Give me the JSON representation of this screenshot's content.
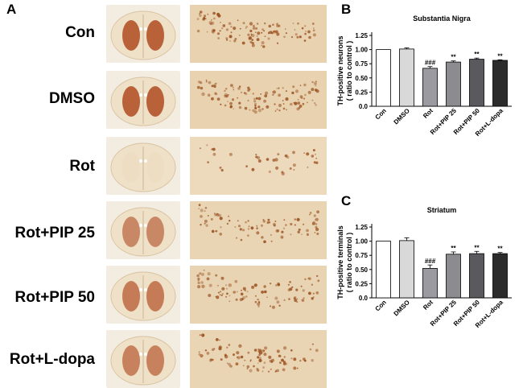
{
  "figure": {
    "panel_a_letter": "A",
    "panel_b_letter": "B",
    "panel_c_letter": "C"
  },
  "groups": [
    "Con",
    "DMSO",
    "Rot",
    "Rot+PIP 25",
    "Rot+PIP 50",
    "Rot+L-dopa"
  ],
  "colors": {
    "brain_stain_dark": "#b9623a",
    "brain_stain_light": "#efe0c8",
    "brain_background": "#f3ece0",
    "micro_background": "#e8d2b0",
    "micro_neuron": "#9a4f1e",
    "bar_con": "#ffffff",
    "bar_dmso": "#d9d9d9",
    "bar_rot": "#9a9aa0",
    "bar_pip25": "#8c8c90",
    "bar_pip50": "#5a5a5e",
    "bar_ldopa": "#2c2c2c"
  },
  "chart_data": [
    {
      "type": "bar",
      "panel": "B",
      "title": "Substantia Nigra",
      "ylabel_line1": "TH-positive neurons",
      "ylabel_line2": "( ratio to control )",
      "xlabel": "",
      "categories": [
        "Con",
        "DMSO",
        "Rot",
        "Rot+PIP 25",
        "Rot+PIP 50",
        "Rot+L-dopa"
      ],
      "values": [
        1.0,
        1.01,
        0.67,
        0.78,
        0.83,
        0.81
      ],
      "errors": [
        0.0,
        0.02,
        0.03,
        0.02,
        0.02,
        0.01
      ],
      "annotations": [
        "",
        "",
        "###",
        "**",
        "**",
        "**"
      ],
      "ylim": [
        0,
        1.25
      ],
      "yticks": [
        "0.0",
        "0.25",
        "0.50",
        "0.75",
        "1.00",
        "1.25"
      ]
    },
    {
      "type": "bar",
      "panel": "C",
      "title": "Striatum",
      "ylabel_line1": "TH-positive terminals",
      "ylabel_line2": "( ratio to control )",
      "xlabel": "",
      "categories": [
        "Con",
        "DMSO",
        "Rot",
        "Rot+PIP 25",
        "Rot+PIP 50",
        "Rot+L-dopa"
      ],
      "values": [
        1.0,
        1.01,
        0.52,
        0.77,
        0.78,
        0.78
      ],
      "errors": [
        0.0,
        0.05,
        0.06,
        0.04,
        0.04,
        0.02
      ],
      "annotations": [
        "",
        "",
        "###",
        "**",
        "**",
        "**"
      ],
      "ylim": [
        0,
        1.25
      ],
      "yticks": [
        "0.0",
        "0.25",
        "0.50",
        "0.75",
        "1.00",
        "1.25"
      ]
    }
  ]
}
